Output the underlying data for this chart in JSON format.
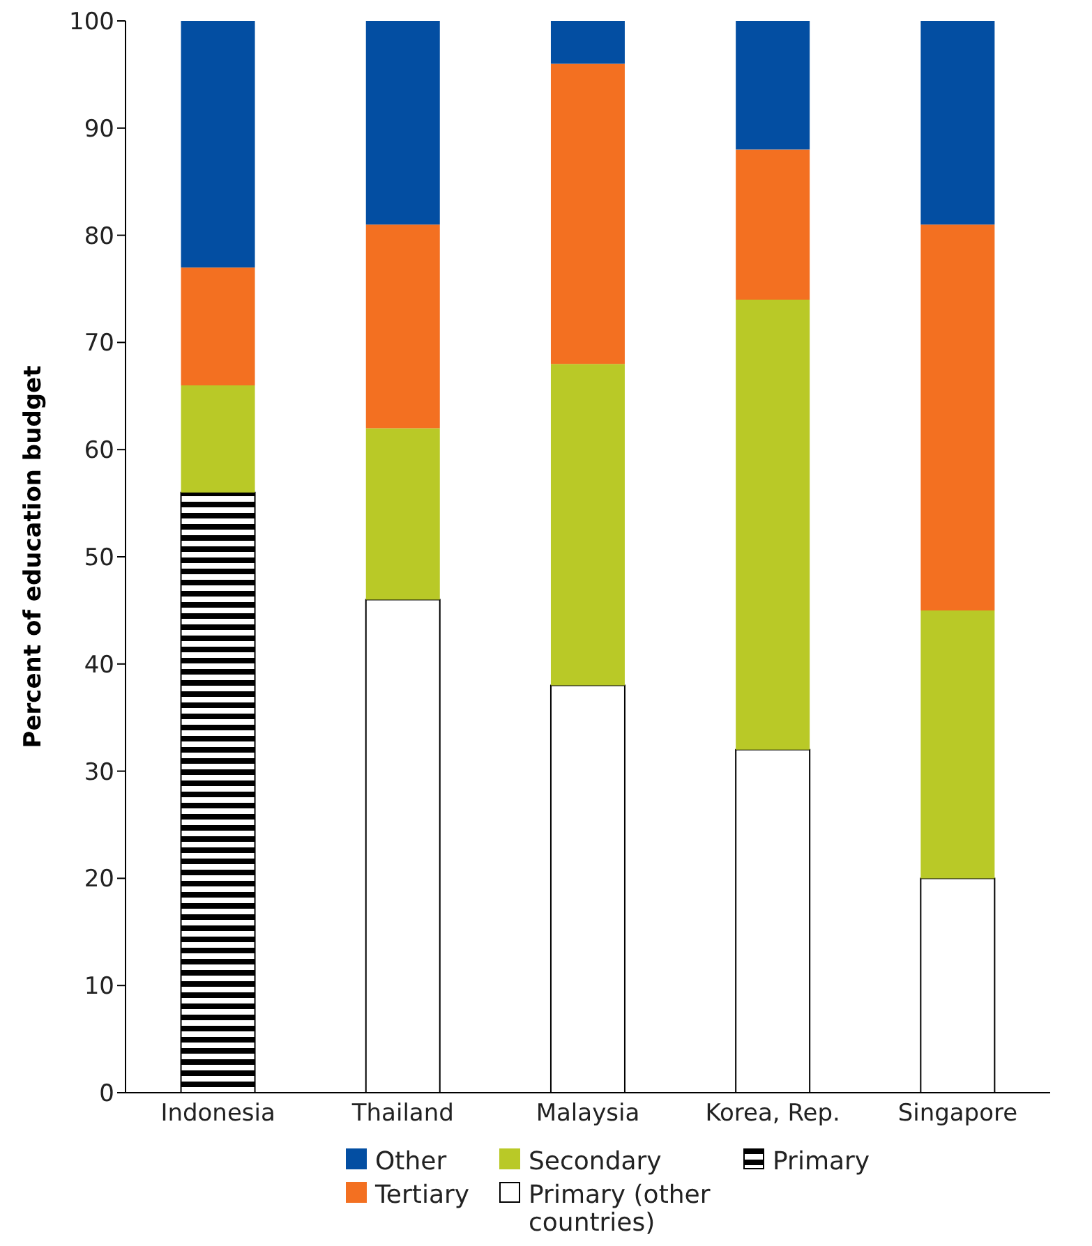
{
  "chart_data": {
    "type": "bar",
    "stacked": true,
    "ylabel": "Percent of education budget",
    "categories": [
      "Indonesia",
      "Thailand",
      "Malaysia",
      "Korea, Rep.",
      "Singapore"
    ],
    "ylim": [
      0,
      100
    ],
    "yticks": [
      0,
      10,
      20,
      30,
      40,
      50,
      60,
      70,
      80,
      90,
      100
    ],
    "grid": false,
    "legend": "bottom",
    "series": [
      {
        "name": "Primary",
        "color": "#000000",
        "values": [
          56,
          null,
          null,
          null,
          null
        ]
      },
      {
        "name": "Primary (other countries)",
        "color": "#ffffff",
        "values": [
          null,
          46,
          38,
          32,
          20
        ]
      },
      {
        "name": "Secondary",
        "color": "#b9c927",
        "values": [
          10,
          16,
          30,
          42,
          25
        ]
      },
      {
        "name": "Tertiary",
        "color": "#f37021",
        "values": [
          11,
          19,
          28,
          14,
          36
        ]
      },
      {
        "name": "Other",
        "color": "#034ea2",
        "values": [
          23,
          19,
          4,
          12,
          19
        ]
      }
    ]
  }
}
